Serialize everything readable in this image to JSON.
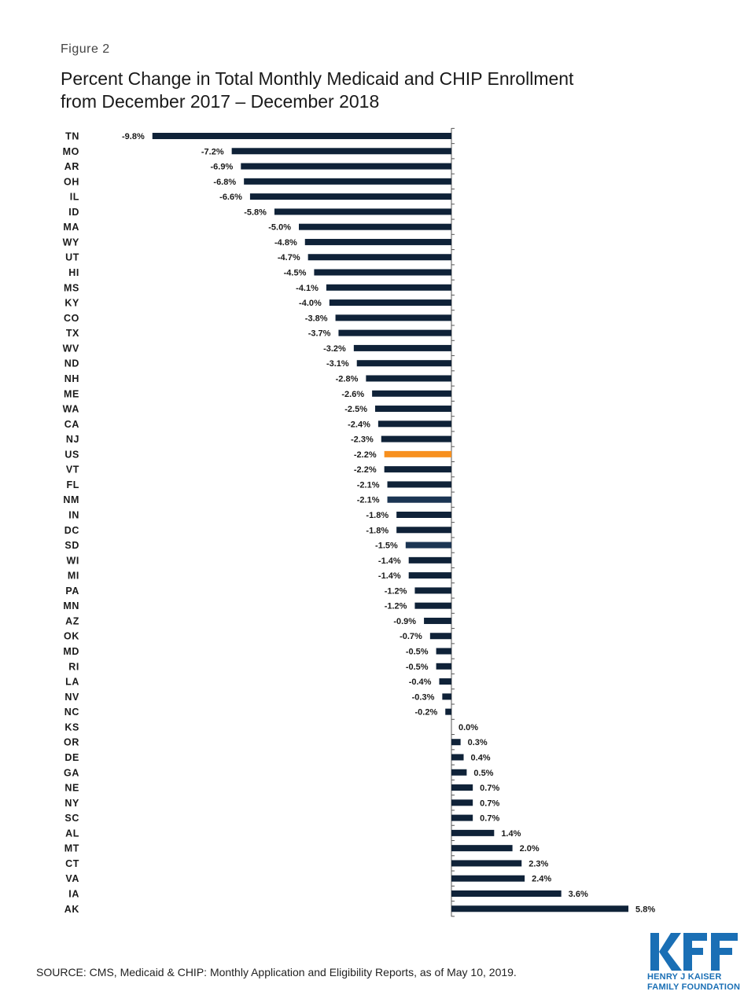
{
  "figure_label": "Figure 2",
  "title_lines": [
    "Percent Change in Total Monthly Medicaid and CHIP Enrollment",
    "from December 2017 – December 2018"
  ],
  "source": "SOURCE:  CMS, Medicaid & CHIP:  Monthly Application and Eligibility Reports, as of May 10, 2019.",
  "logo": {
    "name": "KFF",
    "line1": "HENRY J KAISER",
    "line2": "FAMILY FOUNDATION",
    "color": "#1a6fb5"
  },
  "colors": {
    "default": "#0f2238",
    "highlight_us": "#f7901e",
    "dark_blue": "#1b3553"
  },
  "chart_data": {
    "type": "bar",
    "orientation": "horizontal",
    "unit": "%",
    "xlim": [
      -9.8,
      5.8
    ],
    "categories": [
      "TN",
      "MO",
      "AR",
      "OH",
      "IL",
      "ID",
      "MA",
      "WY",
      "UT",
      "HI",
      "MS",
      "KY",
      "CO",
      "TX",
      "WV",
      "ND",
      "NH",
      "ME",
      "WA",
      "CA",
      "NJ",
      "US",
      "VT",
      "FL",
      "NM",
      "IN",
      "DC",
      "SD",
      "WI",
      "MI",
      "PA",
      "MN",
      "AZ",
      "OK",
      "MD",
      "RI",
      "LA",
      "NV",
      "NC",
      "KS",
      "OR",
      "DE",
      "GA",
      "NE",
      "NY",
      "SC",
      "AL",
      "MT",
      "CT",
      "VA",
      "IA",
      "AK"
    ],
    "values": [
      -9.8,
      -7.2,
      -6.9,
      -6.8,
      -6.6,
      -5.8,
      -5.0,
      -4.8,
      -4.7,
      -4.5,
      -4.1,
      -4.0,
      -3.8,
      -3.7,
      -3.2,
      -3.1,
      -2.8,
      -2.6,
      -2.5,
      -2.4,
      -2.3,
      -2.2,
      -2.2,
      -2.1,
      -2.1,
      -1.8,
      -1.8,
      -1.5,
      -1.4,
      -1.4,
      -1.2,
      -1.2,
      -0.9,
      -0.7,
      -0.5,
      -0.5,
      -0.4,
      -0.3,
      -0.2,
      0.0,
      0.3,
      0.4,
      0.5,
      0.7,
      0.7,
      0.7,
      1.4,
      2.0,
      2.3,
      2.4,
      3.6,
      5.8
    ],
    "labels": [
      "-9.8%",
      "-7.2%",
      "-6.9%",
      "-6.8%",
      "-6.6%",
      "-5.8%",
      "-5.0%",
      "-4.8%",
      "-4.7%",
      "-4.5%",
      "-4.1%",
      "-4.0%",
      "-3.8%",
      "-3.7%",
      "-3.2%",
      "-3.1%",
      "-2.8%",
      "-2.6%",
      "-2.5%",
      "-2.4%",
      "-2.3%",
      "-2.2%",
      "-2.2%",
      "-2.1%",
      "-2.1%",
      "-1.8%",
      "-1.8%",
      "-1.5%",
      "-1.4%",
      "-1.4%",
      "-1.2%",
      "-1.2%",
      "-0.9%",
      "-0.7%",
      "-0.5%",
      "-0.5%",
      "-0.4%",
      "-0.3%",
      "-0.2%",
      "0.0%",
      "0.3%",
      "0.4%",
      "0.5%",
      "0.7%",
      "0.7%",
      "0.7%",
      "1.4%",
      "2.0%",
      "2.3%",
      "2.4%",
      "3.6%",
      "5.8%"
    ],
    "highlight": {
      "US": "highlight_us",
      "NM": "dark_blue",
      "SD": "dark_blue"
    },
    "grid": false,
    "legend": "none"
  }
}
